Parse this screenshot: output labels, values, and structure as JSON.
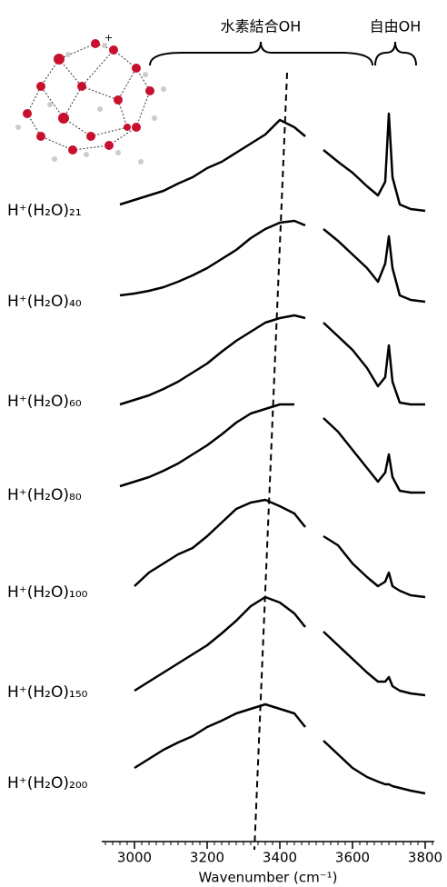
{
  "chart_data": {
    "type": "line",
    "x_label": "Wavenumber (cm⁻¹)",
    "annotations": [
      "水素結合OH",
      "自由OH",
      "+"
    ],
    "xlim": [
      2910,
      3825
    ],
    "xticks": [
      3000,
      3200,
      3400,
      3600,
      3800
    ],
    "minor_xticks": [
      2920,
      2940,
      2960,
      2980,
      3000,
      3020,
      3040,
      3060,
      3080,
      3100,
      3120,
      3140,
      3160,
      3180,
      3200,
      3220,
      3240,
      3260,
      3280,
      3300,
      3320,
      3340,
      3360,
      3380,
      3400,
      3420,
      3440,
      3460,
      3480,
      3500,
      3520,
      3540,
      3560,
      3580,
      3600,
      3620,
      3640,
      3660,
      3680,
      3700,
      3720,
      3740,
      3760,
      3780,
      3800,
      3820
    ],
    "ylim": [
      0,
      120
    ],
    "color": "#000000",
    "peak_line": [
      3420,
      3330
    ],
    "x": [
      2960,
      3000,
      3040,
      3080,
      3120,
      3160,
      3200,
      3240,
      3280,
      3320,
      3360,
      3400,
      3440,
      3470,
      3500,
      3520,
      3560,
      3600,
      3640,
      3670,
      3690,
      3700,
      3710,
      3730,
      3760,
      3800
    ],
    "series": [
      {
        "name": "H⁺(H₂O)₂₁",
        "values": [
          15,
          20,
          25,
          30,
          38,
          45,
          55,
          62,
          72,
          82,
          92,
          108,
          100,
          90,
          null,
          75,
          62,
          50,
          35,
          25,
          40,
          115,
          45,
          15,
          10,
          8
        ]
      },
      {
        "name": "H⁺(H₂O)₄₀",
        "values": [
          15,
          17,
          20,
          24,
          30,
          37,
          45,
          55,
          65,
          78,
          88,
          95,
          97,
          92,
          null,
          88,
          75,
          60,
          45,
          30,
          50,
          80,
          45,
          15,
          10,
          8
        ]
      },
      {
        "name": "H⁺(H₂O)₆₀",
        "values": [
          10,
          15,
          20,
          27,
          35,
          45,
          55,
          68,
          80,
          90,
          100,
          105,
          108,
          105,
          null,
          100,
          85,
          70,
          50,
          30,
          40,
          75,
          35,
          12,
          10,
          10
        ]
      },
      {
        "name": "H⁺(H₂O)₈₀",
        "values": [
          15,
          20,
          25,
          32,
          40,
          50,
          60,
          72,
          85,
          95,
          100,
          105,
          105,
          null,
          null,
          90,
          75,
          55,
          35,
          20,
          30,
          50,
          25,
          10,
          8,
          8
        ]
      },
      {
        "name": "H⁺(H₂O)₁₀₀",
        "values": [
          null,
          20,
          35,
          45,
          55,
          62,
          75,
          90,
          105,
          112,
          115,
          108,
          100,
          85,
          null,
          75,
          65,
          45,
          30,
          20,
          25,
          35,
          20,
          15,
          10,
          8
        ]
      },
      {
        "name": "H⁺(H₂O)₁₅₀",
        "values": [
          null,
          15,
          25,
          35,
          45,
          55,
          65,
          78,
          92,
          108,
          118,
          112,
          100,
          85,
          null,
          80,
          65,
          50,
          35,
          25,
          25,
          30,
          20,
          15,
          12,
          10
        ]
      },
      {
        "name": "H⁺(H₂O)₂₀₀",
        "values": [
          null,
          40,
          50,
          60,
          68,
          75,
          85,
          92,
          100,
          105,
          110,
          105,
          100,
          85,
          null,
          70,
          55,
          40,
          30,
          25,
          22,
          22,
          20,
          18,
          15,
          12
        ]
      }
    ]
  }
}
